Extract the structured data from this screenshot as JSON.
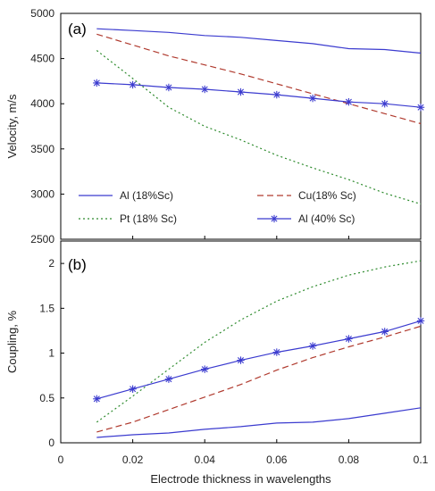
{
  "chart_data": [
    {
      "type": "line",
      "panel_label": "(a)",
      "xlabel": "",
      "ylabel": "Velocity, m/s",
      "xlim": [
        0,
        0.1
      ],
      "ylim": [
        2500,
        5000
      ],
      "x_ticks": [
        "0",
        "0.02",
        "0.04",
        "0.06",
        "0.08",
        "0.1"
      ],
      "y_ticks": [
        "2500",
        "3000",
        "3500",
        "4000",
        "4500",
        "5000"
      ],
      "grid": false,
      "legend": "bottom-left",
      "series": [
        {
          "name": "Al (18%Sc)",
          "color": "#3b3bcf",
          "style": "solid",
          "marker": "none",
          "x": [
            0.01,
            0.02,
            0.03,
            0.04,
            0.05,
            0.06,
            0.07,
            0.08,
            0.09,
            0.1
          ],
          "y": [
            4830,
            4810,
            4790,
            4755,
            4735,
            4700,
            4665,
            4610,
            4600,
            4560
          ]
        },
        {
          "name": "Cu(18% Sc)",
          "color": "#b03a2e",
          "style": "dashed",
          "marker": "none",
          "x": [
            0.01,
            0.02,
            0.03,
            0.04,
            0.05,
            0.06,
            0.07,
            0.08,
            0.09,
            0.1
          ],
          "y": [
            4770,
            4650,
            4530,
            4430,
            4330,
            4220,
            4110,
            4000,
            3890,
            3780
          ]
        },
        {
          "name": "Pt (18% Sc)",
          "color": "#2e8b2e",
          "style": "dotted",
          "marker": "none",
          "x": [
            0.01,
            0.02,
            0.03,
            0.04,
            0.05,
            0.06,
            0.07,
            0.08,
            0.09,
            0.1
          ],
          "y": [
            4590,
            4280,
            3960,
            3750,
            3600,
            3430,
            3290,
            3160,
            3010,
            2890
          ]
        },
        {
          "name": "Al (40% Sc)",
          "color": "#3b3bcf",
          "style": "solid",
          "marker": "star",
          "x": [
            0.01,
            0.02,
            0.03,
            0.04,
            0.05,
            0.06,
            0.07,
            0.08,
            0.09,
            0.1
          ],
          "y": [
            4230,
            4210,
            4180,
            4160,
            4130,
            4100,
            4060,
            4020,
            4000,
            3960
          ]
        }
      ]
    },
    {
      "type": "line",
      "panel_label": "(b)",
      "xlabel": "Electrode thickness in wavelengths",
      "ylabel": "Coupling, %",
      "xlim": [
        0,
        0.1
      ],
      "ylim": [
        0,
        2.25
      ],
      "x_ticks": [
        "0",
        "0.02",
        "0.04",
        "0.06",
        "0.08",
        "0.1"
      ],
      "y_ticks": [
        "0",
        "0.5",
        "1",
        "1.5",
        "2"
      ],
      "grid": false,
      "series": [
        {
          "name": "Al (18%Sc)",
          "color": "#3b3bcf",
          "style": "solid",
          "marker": "none",
          "x": [
            0.01,
            0.02,
            0.03,
            0.04,
            0.05,
            0.06,
            0.07,
            0.08,
            0.09,
            0.1
          ],
          "y": [
            0.06,
            0.09,
            0.11,
            0.15,
            0.18,
            0.22,
            0.23,
            0.27,
            0.33,
            0.39
          ]
        },
        {
          "name": "Cu(18% Sc)",
          "color": "#b03a2e",
          "style": "dashed",
          "marker": "none",
          "x": [
            0.01,
            0.02,
            0.03,
            0.04,
            0.05,
            0.06,
            0.07,
            0.08,
            0.09,
            0.1
          ],
          "y": [
            0.12,
            0.23,
            0.37,
            0.51,
            0.65,
            0.81,
            0.95,
            1.07,
            1.18,
            1.3
          ]
        },
        {
          "name": "Pt (18% Sc)",
          "color": "#2e8b2e",
          "style": "dotted",
          "marker": "none",
          "x": [
            0.01,
            0.02,
            0.03,
            0.04,
            0.05,
            0.06,
            0.07,
            0.08,
            0.09,
            0.1
          ],
          "y": [
            0.23,
            0.52,
            0.82,
            1.12,
            1.37,
            1.58,
            1.74,
            1.87,
            1.96,
            2.03
          ]
        },
        {
          "name": "Al (40% Sc)",
          "color": "#3b3bcf",
          "style": "solid",
          "marker": "star",
          "x": [
            0.01,
            0.02,
            0.03,
            0.04,
            0.05,
            0.06,
            0.07,
            0.08,
            0.09,
            0.1
          ],
          "y": [
            0.49,
            0.6,
            0.71,
            0.82,
            0.92,
            1.01,
            1.08,
            1.16,
            1.24,
            1.36
          ]
        }
      ]
    }
  ]
}
